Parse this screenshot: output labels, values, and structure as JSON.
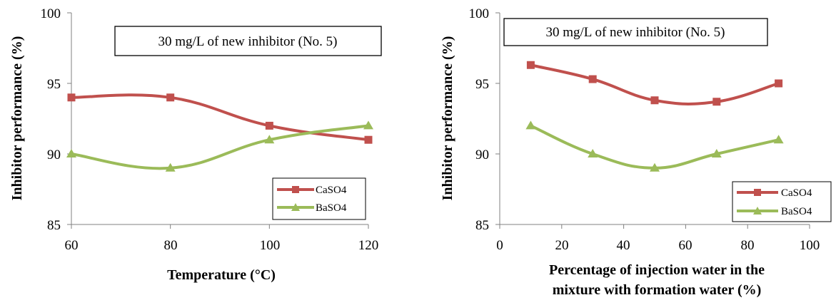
{
  "colors": {
    "caso4": "#C0504D",
    "baso4": "#9BBB59"
  },
  "chart_data": [
    {
      "type": "line",
      "annotation": "30 mg/L of new inhibitor (No. 5)",
      "xlabel": "Temperature (°C)",
      "ylabel": "Inhibitor performance (%)",
      "xlim": [
        60,
        120
      ],
      "ylim": [
        85,
        100
      ],
      "xticks": [
        "60",
        "80",
        "100",
        "120"
      ],
      "yticks": [
        "85",
        "90",
        "95",
        "100"
      ],
      "legend_position": "bottom-right",
      "series": [
        {
          "name": "CaSO4",
          "marker": "square",
          "x": [
            60,
            80,
            100,
            120
          ],
          "y": [
            94,
            94,
            92,
            91
          ]
        },
        {
          "name": "BaSO4",
          "marker": "triangle",
          "x": [
            60,
            80,
            100,
            120
          ],
          "y": [
            90,
            89,
            91,
            92
          ]
        }
      ]
    },
    {
      "type": "line",
      "annotation": "30 mg/L of new inhibitor (No. 5)",
      "xlabel_lines": [
        "Percentage of injection water in the",
        "mixture with formation water (%)"
      ],
      "ylabel": "Inhibitor performance (%)",
      "xlim": [
        0,
        100
      ],
      "ylim": [
        85,
        100
      ],
      "xticks": [
        "0",
        "20",
        "40",
        "60",
        "80",
        "100"
      ],
      "yticks": [
        "85",
        "90",
        "95",
        "100"
      ],
      "legend_position": "bottom-right",
      "series": [
        {
          "name": "CaSO4",
          "marker": "square",
          "x": [
            10,
            30,
            50,
            70,
            90
          ],
          "y": [
            96.3,
            95.3,
            93.8,
            93.7,
            95
          ]
        },
        {
          "name": "BaSO4",
          "marker": "triangle",
          "x": [
            10,
            30,
            50,
            70,
            90
          ],
          "y": [
            92,
            90,
            89,
            90,
            91
          ]
        }
      ]
    }
  ]
}
